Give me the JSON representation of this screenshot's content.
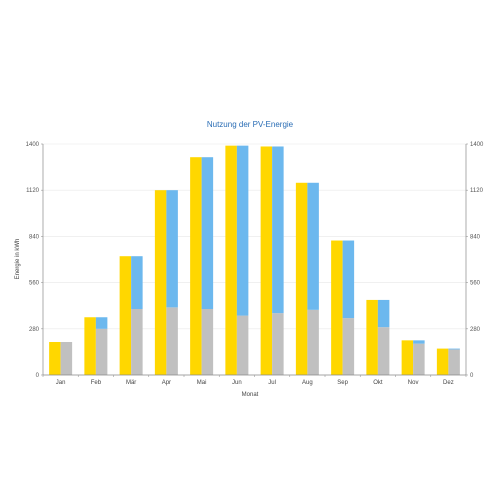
{
  "chart_data": {
    "type": "bar",
    "title": "Nutzung der PV-Energie",
    "xlabel": "Monat",
    "ylabel": "Energie in kWh",
    "ylim": [
      0,
      1400
    ],
    "yticks": [
      0,
      280,
      560,
      840,
      1120,
      1400
    ],
    "grid": true,
    "secondary_y_axis": true,
    "categories": [
      "Jan",
      "Feb",
      "Mär",
      "Apr",
      "Mai",
      "Jun",
      "Jul",
      "Aug",
      "Sep",
      "Okt",
      "Nov",
      "Dez"
    ],
    "series": [
      {
        "values": [
          200,
          350,
          720,
          1120,
          1320,
          1390,
          1385,
          1165,
          815,
          455,
          210,
          160
        ]
      },
      {
        "values": [
          200,
          280,
          400,
          410,
          400,
          360,
          375,
          395,
          345,
          290,
          190,
          155
        ],
        "stack": "b"
      },
      {
        "values": [
          0,
          70,
          320,
          710,
          920,
          1030,
          1010,
          770,
          470,
          165,
          20,
          5
        ],
        "stack": "b"
      }
    ],
    "colors": [
      "#ffd700",
      "#c0c0c0",
      "#6cb8ee"
    ]
  }
}
